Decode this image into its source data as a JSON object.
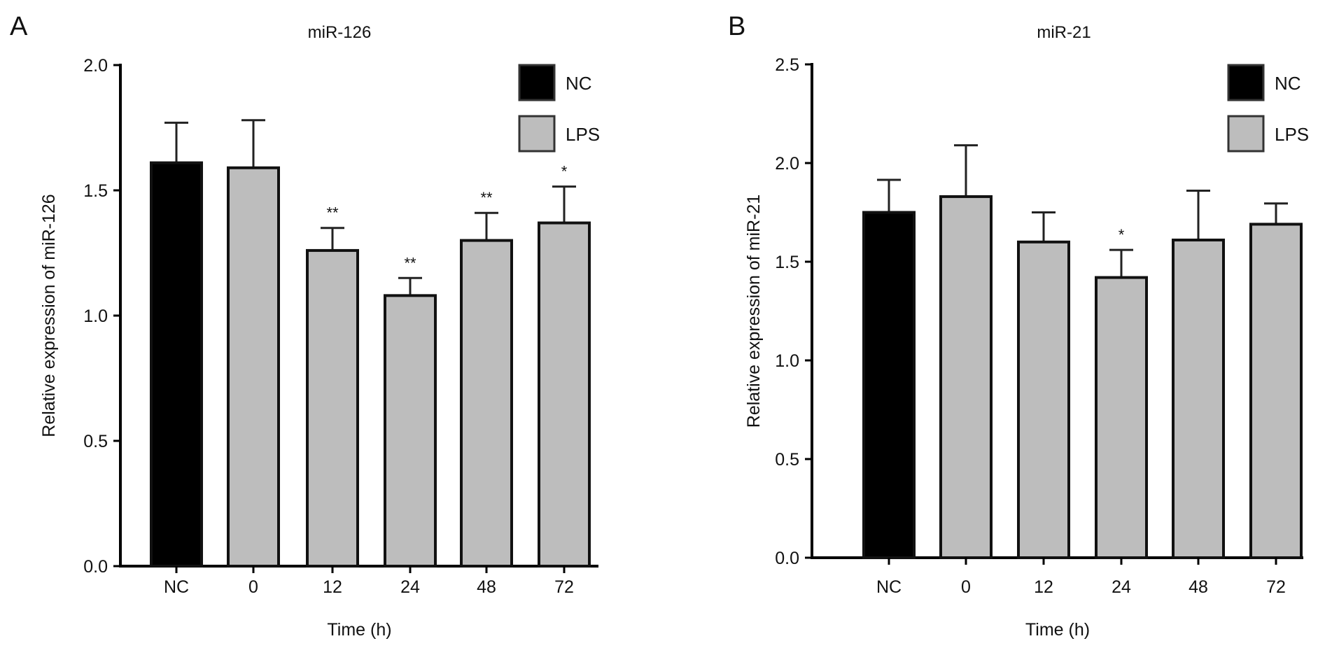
{
  "chart_data": [
    {
      "type": "bar",
      "panel_label": "A",
      "title": "miR-126",
      "xlabel": "Time (h)",
      "ylabel": "Relative expression of miR-126",
      "ylim": [
        0,
        2.0
      ],
      "yticks": [
        "0.0",
        "0.5",
        "1.0",
        "1.5",
        "2.0"
      ],
      "categories": [
        "NC",
        "0",
        "12",
        "24",
        "48",
        "72"
      ],
      "groups": [
        "NC",
        "LPS",
        "LPS",
        "LPS",
        "LPS",
        "LPS"
      ],
      "values": [
        1.61,
        1.59,
        1.26,
        1.08,
        1.3,
        1.37
      ],
      "error_upper": [
        1.77,
        1.78,
        1.35,
        1.15,
        1.41,
        1.515
      ],
      "significance": [
        "",
        "",
        "**",
        "**",
        "**",
        "*"
      ],
      "legend": [
        {
          "label": "NC",
          "color": "#000000"
        },
        {
          "label": "LPS",
          "color": "#bdbdbd"
        }
      ],
      "legend_position": "top-right",
      "grid": false
    },
    {
      "type": "bar",
      "panel_label": "B",
      "title": "miR-21",
      "xlabel": "Time (h)",
      "ylabel": "Relative expression of miR-21",
      "ylim": [
        0,
        2.5
      ],
      "yticks": [
        "0.0",
        "0.5",
        "1.0",
        "1.5",
        "2.0",
        "2.5"
      ],
      "categories": [
        "NC",
        "0",
        "12",
        "24",
        "48",
        "72"
      ],
      "groups": [
        "NC",
        "LPS",
        "LPS",
        "LPS",
        "LPS",
        "LPS"
      ],
      "values": [
        1.75,
        1.83,
        1.6,
        1.42,
        1.61,
        1.69
      ],
      "error_upper": [
        1.915,
        2.09,
        1.75,
        1.56,
        1.86,
        1.795
      ],
      "significance": [
        "",
        "",
        "",
        "*",
        "",
        ""
      ],
      "legend": [
        {
          "label": "NC",
          "color": "#000000"
        },
        {
          "label": "LPS",
          "color": "#bdbdbd"
        }
      ],
      "legend_position": "top-right",
      "grid": false
    }
  ]
}
